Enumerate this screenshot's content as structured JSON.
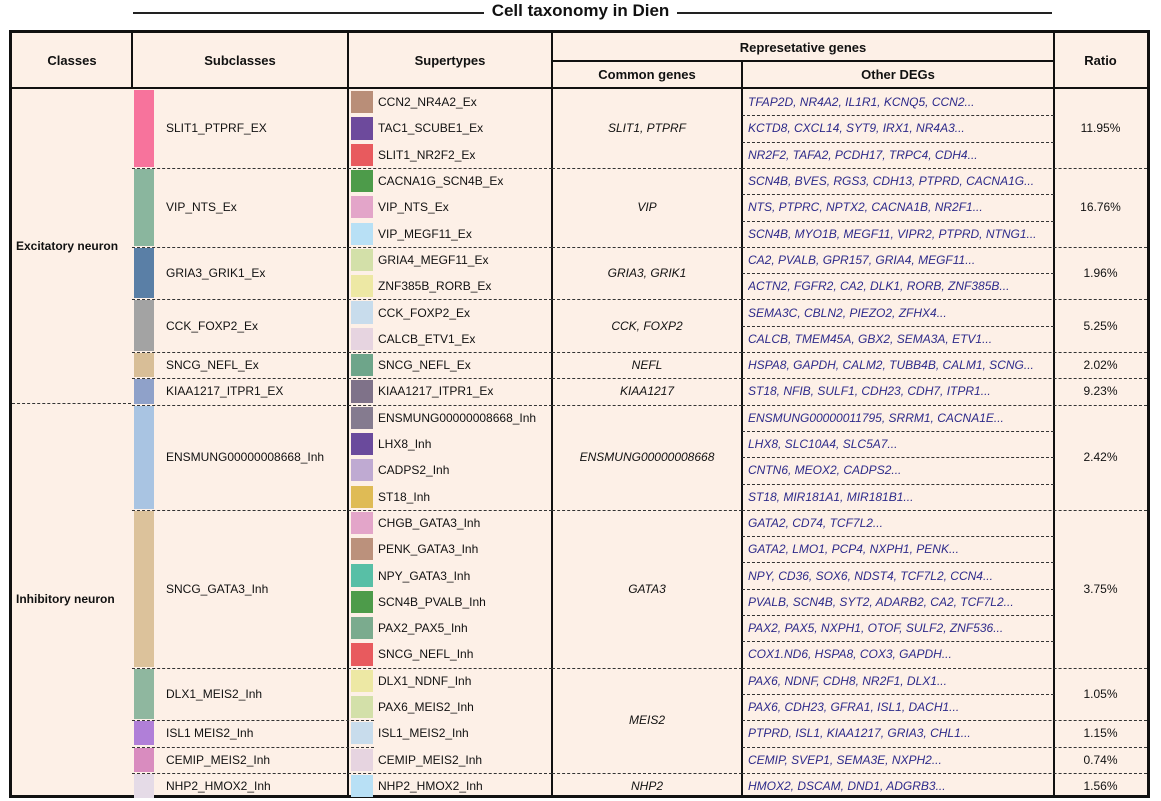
{
  "title": "Cell taxonomy in Dien",
  "headers": {
    "classes": "Classes",
    "subclasses": "Subclasses",
    "supertypes": "Supertypes",
    "rep_genes": "Represetative genes",
    "common_genes": "Common genes",
    "other_degs": "Other DEGs",
    "ratio": "Ratio"
  },
  "classes": [
    {
      "label": "Excitatory neuron"
    },
    {
      "label": "Inhibitory neuron"
    }
  ],
  "subclasses": [
    {
      "label": "SLIT1_PTPRF_EX",
      "color": "#f7739c",
      "ratio": "11.95%"
    },
    {
      "label": "VIP_NTS_Ex",
      "color": "#8ab69e",
      "ratio": "16.76%"
    },
    {
      "label": "GRIA3_GRIK1_Ex",
      "color": "#5a7fa6",
      "ratio": "1.96%"
    },
    {
      "label": "CCK_FOXP2_Ex",
      "color": "#a3a3a3",
      "ratio": "5.25%"
    },
    {
      "label": "SNCG_NEFL_Ex",
      "color": "#d8be97",
      "ratio": "2.02%"
    },
    {
      "label": "KIAA1217_ITPR1_EX",
      "color": "#8fa1c9",
      "ratio": "9.23%"
    },
    {
      "label": "ENSMUNG00000008668_Inh",
      "color": "#a9c4e2",
      "ratio": "2.42%"
    },
    {
      "label": "SNCG_GATA3_Inh",
      "color": "#dcc29b",
      "ratio": "3.75%"
    },
    {
      "label": "DLX1_MEIS2_Inh",
      "color": "#8fb79f",
      "ratio": "1.05%"
    },
    {
      "label": "ISL1 MEIS2_Inh",
      "color": "#b07fd8",
      "ratio": "1.15%"
    },
    {
      "label": "CEMIP_MEIS2_Inh",
      "color": "#d98cbf",
      "ratio": "0.74%"
    },
    {
      "label": "NHP2_HMOX2_Inh",
      "color": "#e5dbe7",
      "ratio": "1.56%"
    }
  ],
  "common_genes": [
    {
      "label": "SLIT1, PTPRF"
    },
    {
      "label": "VIP"
    },
    {
      "label": "GRIA3, GRIK1"
    },
    {
      "label": "CCK, FOXP2"
    },
    {
      "label": "NEFL"
    },
    {
      "label": "KIAA1217"
    },
    {
      "label": "ENSMUNG00000008668"
    },
    {
      "label": "GATA3"
    },
    {
      "label": "MEIS2"
    },
    {
      "label": "NHP2"
    }
  ],
  "supertypes": [
    {
      "label": "CCN2_NR4A2_Ex",
      "color": "#b98e78",
      "degs": "TFAP2D, NR4A2, IL1R1, KCNQ5, CCN2..."
    },
    {
      "label": "TAC1_SCUBE1_Ex",
      "color": "#6d4a9c",
      "degs": "KCTD8, CXCL14, SYT9, IRX1, NR4A3..."
    },
    {
      "label": "SLIT1_NR2F2_Ex",
      "color": "#e85a5e",
      "degs": "NR2F2, TAFA2, PCDH17, TRPC4, CDH4..."
    },
    {
      "label": "CACNA1G_SCN4B_Ex",
      "color": "#4d9b4a",
      "degs": "SCN4B, BVES, RGS3, CDH13, PTPRD, CACNA1G..."
    },
    {
      "label": "VIP_NTS_Ex",
      "color": "#e3a5c9",
      "degs": "NTS, PTPRC, NPTX2, CACNA1B, NR2F1..."
    },
    {
      "label": "VIP_MEGF11_Ex",
      "color": "#b8e0f5",
      "degs": "SCN4B, MYO1B, MEGF11, VIPR2, PTPRD, NTNG1..."
    },
    {
      "label": "GRIA4_MEGF11_Ex",
      "color": "#d3e0a9",
      "degs": "CA2, PVALB, GPR157, GRIA4, MEGF11..."
    },
    {
      "label": "ZNF385B_RORB_Ex",
      "color": "#ede8a4",
      "degs": "ACTN2, FGFR2, CA2, DLK1, RORB, ZNF385B..."
    },
    {
      "label": "CCK_FOXP2_Ex",
      "color": "#c8dcec",
      "degs": "SEMA3C, CBLN2, PIEZO2, ZFHX4..."
    },
    {
      "label": "CALCB_ETV1_Ex",
      "color": "#e6d4e0",
      "degs": "CALCB, TMEM45A, GBX2, SEMA3A, ETV1..."
    },
    {
      "label": "SNCG_NEFL_Ex",
      "color": "#6ea58a",
      "degs": "HSPA8, GAPDH, CALM2, TUBB4B, CALM1, SCNG..."
    },
    {
      "label": "KIAA1217_ITPR1_Ex",
      "color": "#7f7289",
      "degs": "ST18, NFIB, SULF1, CDH23, CDH7, ITPR1..."
    },
    {
      "label": "ENSMUNG00000008668_Inh",
      "color": "#857b8f",
      "degs": "ENSMUNG00000011795, SRRM1, CACNA1E..."
    },
    {
      "label": "LHX8_Inh",
      "color": "#6a4a9c",
      "degs": "LHX8, SLC10A4, SLC5A7..."
    },
    {
      "label": "CADPS2_Inh",
      "color": "#bfaad2",
      "degs": "CNTN6, MEOX2, CADPS2..."
    },
    {
      "label": "ST18_Inh",
      "color": "#dfbb55",
      "degs": "ST18, MIR181A1, MIR181B1..."
    },
    {
      "label": "CHGB_GATA3_Inh",
      "color": "#e3a5c9",
      "degs": "GATA2, CD74, TCF7L2..."
    },
    {
      "label": "PENK_GATA3_Inh",
      "color": "#bb917c",
      "degs": "GATA2, LMO1, PCP4, NXPH1, PENK..."
    },
    {
      "label": "NPY_GATA3_Inh",
      "color": "#58bfa6",
      "degs": "NPY, CD36, SOX6, NDST4, TCF7L2, CCN4..."
    },
    {
      "label": "SCN4B_PVALB_Inh",
      "color": "#4d9b4a",
      "degs": "PVALB, SCN4B, SYT2, ADARB2, CA2, TCF7L2..."
    },
    {
      "label": "PAX2_PAX5_Inh",
      "color": "#7bab8e",
      "degs": "PAX2, PAX5, NXPH1, OTOF, SULF2, ZNF536..."
    },
    {
      "label": "SNCG_NEFL_Inh",
      "color": "#e85a5e",
      "degs": "COX1.ND6, HSPA8, COX3, GAPDH..."
    },
    {
      "label": "DLX1_NDNF_Inh",
      "color": "#ede8a4",
      "degs": "PAX6, NDNF, CDH8, NR2F1, DLX1..."
    },
    {
      "label": "PAX6_MEIS2_Inh",
      "color": "#d3e0a9",
      "degs": "PAX6, CDH23, GFRA1, ISL1, DACH1..."
    },
    {
      "label": "ISL1_MEIS2_Inh",
      "color": "#c8dcec",
      "degs": "PTPRD, ISL1, KIAA1217, GRIA3, CHL1..."
    },
    {
      "label": "CEMIP_MEIS2_Inh",
      "color": "#e6d4e0",
      "degs": "CEMIP, SVEP1, SEMA3E, NXPH2..."
    },
    {
      "label": "NHP2_HMOX2_Inh",
      "color": "#b8e0f5",
      "degs": "HMOX2, DSCAM, DND1, ADGRB3..."
    }
  ]
}
